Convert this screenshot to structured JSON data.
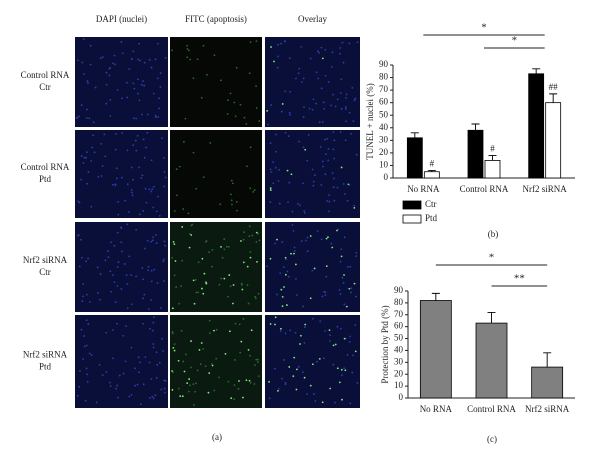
{
  "panel_a": {
    "columns": [
      "DAPI (nuclei)",
      "FITC (apoptosis)",
      "Overlay"
    ],
    "rows": [
      [
        "Control RNA",
        "Ctr"
      ],
      [
        "Control RNA",
        "Ptd"
      ],
      [
        "Nrf2 siRNA",
        "Ctr"
      ],
      [
        "Nrf2 siRNA",
        "Ptd"
      ]
    ],
    "label": "(a)"
  },
  "chart_data": [
    {
      "type": "bar",
      "ylabel": "TUNEL + nuclei (%)",
      "panel_label": "(b)",
      "categories": [
        "No RNA",
        "Control RNA",
        "Nrf2 siRNA"
      ],
      "series": [
        {
          "name": "Ctr",
          "color": "#000000",
          "values": [
            32,
            38,
            83
          ],
          "errors": [
            4,
            5,
            4
          ]
        },
        {
          "name": "Ptd",
          "color": "#ffffff",
          "values": [
            5,
            14,
            60
          ],
          "errors": [
            1,
            4,
            7
          ],
          "marks": [
            "#",
            "#",
            "##"
          ]
        }
      ],
      "ylim": [
        0,
        90
      ],
      "yticks": [
        0,
        10,
        20,
        30,
        40,
        50,
        60,
        70,
        80,
        90
      ],
      "legend": "bottom-left",
      "significance": [
        {
          "text": "*",
          "from": "No RNA",
          "to": "Nrf2 siRNA"
        },
        {
          "text": "*",
          "from": "Control RNA",
          "to": "Nrf2 siRNA"
        }
      ]
    },
    {
      "type": "bar",
      "ylabel": "Protection by Ptd (%)",
      "panel_label": "(c)",
      "categories": [
        "No RNA",
        "Control RNA",
        "Nrf2 siRNA"
      ],
      "series": [
        {
          "color": "#808080",
          "values": [
            82,
            63,
            26
          ],
          "errors": [
            6,
            9,
            12
          ]
        }
      ],
      "ylim": [
        0,
        90
      ],
      "yticks": [
        0,
        10,
        20,
        30,
        40,
        50,
        60,
        70,
        80,
        90
      ],
      "significance": [
        {
          "text": "*",
          "from": "No RNA",
          "to": "Nrf2 siRNA"
        },
        {
          "text": "**",
          "from": "Control RNA",
          "to": "Nrf2 siRNA"
        }
      ]
    }
  ]
}
